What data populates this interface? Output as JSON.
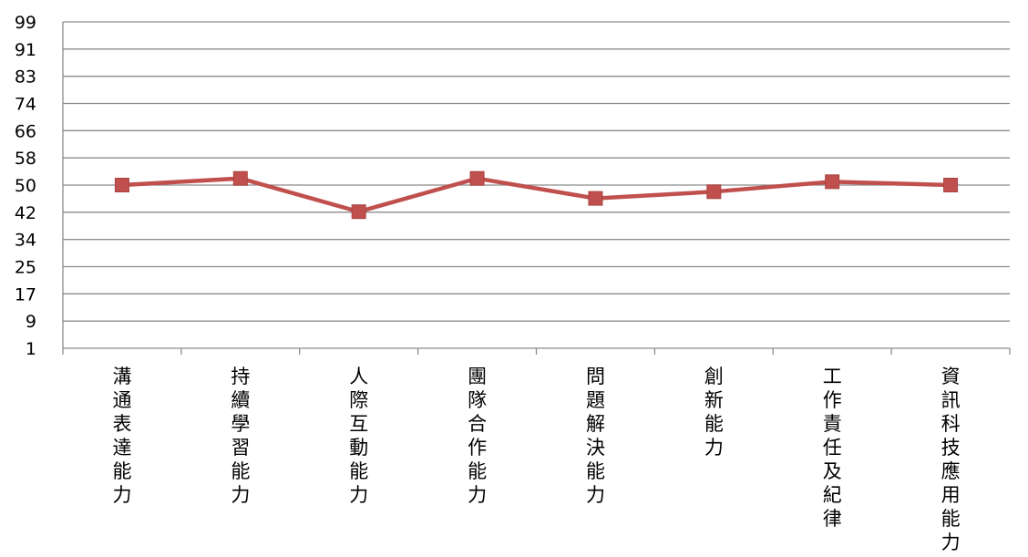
{
  "chart_data": {
    "type": "line",
    "title": "",
    "xlabel": "",
    "ylabel": "",
    "categories": [
      "溝通表達能力",
      "持續學習能力",
      "人際互動能力",
      "團隊合作能力",
      "問題解決能力",
      "創新能力",
      "工作責任及紀律",
      "資訊科技應用能力"
    ],
    "y_ticks": [
      "1",
      "9",
      "17",
      "25",
      "34",
      "42",
      "50",
      "58",
      "66",
      "74",
      "83",
      "91",
      "99"
    ],
    "ylim": [
      1,
      99
    ],
    "grid": true,
    "legend": "none",
    "series": [
      {
        "values": [
          50,
          52,
          42,
          52,
          46,
          48,
          51,
          50
        ]
      }
    ],
    "colors": {
      "line": "#c0504d",
      "marker": "#c0504d",
      "grid": "#8c8c8c",
      "axis": "#8c8c8c"
    }
  }
}
